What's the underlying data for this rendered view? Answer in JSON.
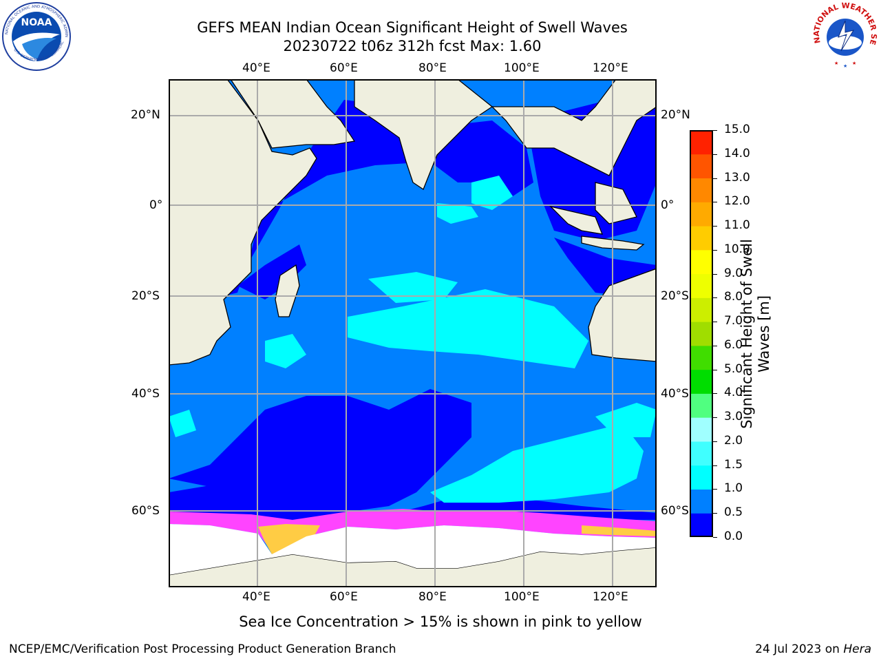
{
  "header": {
    "title_line1": "GEFS MEAN Indian Ocean Significant Height of Swell Waves",
    "title_line2": "20230722 t06z 312h fcst   Max: 1.60"
  },
  "logos": {
    "left": {
      "name": "NOAA",
      "ring_text": "NATIONAL OCEANIC AND ATMOSPHERIC ADMINISTRATION · U.S. DEPARTMENT OF COMMERCE"
    },
    "right": {
      "name": "NATIONAL WEATHER SERVICE"
    }
  },
  "map": {
    "lon_labels": [
      "40°E",
      "60°E",
      "80°E",
      "100°E",
      "120°E"
    ],
    "lat_labels": [
      "20°N",
      "0°",
      "20°S",
      "40°S",
      "60°S"
    ]
  },
  "colorbar": {
    "label": "Significant Height of Swell Waves [m]",
    "label_line1": "Significant Height of Swell",
    "label_line2": "Waves [m]",
    "ticks": [
      "0.0",
      "0.5",
      "1.0",
      "1.5",
      "2.0",
      "3.0",
      "4.0",
      "5.0",
      "6.0",
      "7.0",
      "8.0",
      "9.0",
      "10.0",
      "11.0",
      "12.0",
      "13.0",
      "14.0",
      "15.0"
    ],
    "colors": [
      "#0000ff",
      "#0080ff",
      "#00ffff",
      "#40ffff",
      "#a0ffff",
      "#50ff80",
      "#00dd00",
      "#40dd00",
      "#a0dd00",
      "#ccee00",
      "#eeff00",
      "#ffff00",
      "#ffcc00",
      "#ffaa00",
      "#ff8800",
      "#ff5500",
      "#ff2200"
    ]
  },
  "caption": "Sea Ice Concentration > 15% is shown in pink to yellow",
  "footer": {
    "left": "NCEP/EMC/Verification Post Processing Product Generation Branch",
    "date": "24 Jul 2023 on ",
    "machine": "Hera"
  },
  "colors": {
    "ocean_deep": "#0000ff",
    "ocean_mid": "#0080ff",
    "ocean_light": "#00ffff",
    "land": "#efefdf",
    "ice_edge": "#ff44ff",
    "ice_yellow": "#ffcc44",
    "grid": "#aaaaaa"
  }
}
